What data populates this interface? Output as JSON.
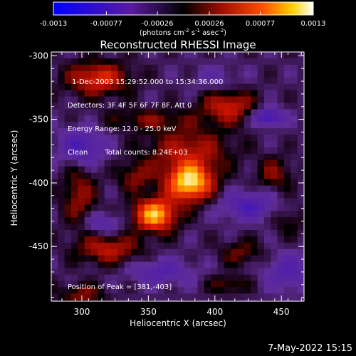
{
  "chart_data": [
    {
      "type": "colorbar",
      "colormap": "black-red-yellow-white with blue/purple negatives",
      "ticks": [
        -0.0013,
        -0.00077,
        -0.00026,
        0.00026,
        0.00077,
        0.0013
      ],
      "tick_labels": [
        "-0.0013",
        "-0.00077",
        "-0.00026",
        "0.00026",
        "0.00077",
        "0.0013"
      ],
      "range": [
        -0.0013,
        0.0013
      ],
      "unit_main": "(photons cm",
      "unit_exp1": "-2",
      "unit_mid": " s",
      "unit_exp2": "-1",
      "unit_end": " asec",
      "unit_exp3": "-2",
      "unit_close": ")"
    },
    {
      "type": "heatmap",
      "title": "Reconstructed RHESSI Image",
      "xlabel": "Heliocentric X (arcsec)",
      "ylabel": "Heliocentric Y (arcsec)",
      "xlim": [
        277,
        467
      ],
      "ylim": [
        -493,
        -297
      ],
      "xticks": [
        300,
        350,
        400,
        450
      ],
      "yticks": [
        -300,
        -350,
        -400,
        -450
      ],
      "peak": [
        381,
        -403
      ],
      "sources": [
        {
          "x": 381,
          "y": -400,
          "sx": 12,
          "sy": 10,
          "amp": 0.00135
        },
        {
          "x": 355,
          "y": -425,
          "sx": 11,
          "sy": 9,
          "amp": 0.00125
        },
        {
          "x": 410,
          "y": -340,
          "sx": 14,
          "sy": 9,
          "amp": 0.00065
        },
        {
          "x": 312,
          "y": -318,
          "sx": 16,
          "sy": 9,
          "amp": 0.00075
        },
        {
          "x": 380,
          "y": -375,
          "sx": 22,
          "sy": 13,
          "amp": 0.00055
        },
        {
          "x": 320,
          "y": -452,
          "sx": 16,
          "sy": 8,
          "amp": 0.0006
        },
        {
          "x": 298,
          "y": -410,
          "sx": 9,
          "sy": 18,
          "amp": 0.00045
        },
        {
          "x": 340,
          "y": -395,
          "sx": 9,
          "sy": 8,
          "amp": 0.0004
        },
        {
          "x": 445,
          "y": -393,
          "sx": 9,
          "sy": 9,
          "amp": 0.0004
        },
        {
          "x": 420,
          "y": -455,
          "sx": 11,
          "sy": 7,
          "amp": 0.00035
        },
        {
          "x": 350,
          "y": -350,
          "sx": 22,
          "sy": 6,
          "amp": 0.00035
        },
        {
          "x": 300,
          "y": -488,
          "sx": 12,
          "sy": 6,
          "amp": 0.0004
        },
        {
          "x": 410,
          "y": -480,
          "sx": 10,
          "sy": 5,
          "amp": 0.00035
        },
        {
          "x": 455,
          "y": -430,
          "sx": 8,
          "sy": 8,
          "amp": 0.00025
        },
        {
          "x": 440,
          "y": -348,
          "sx": 8,
          "sy": 5,
          "amp": -0.00075
        },
        {
          "x": 300,
          "y": -372,
          "sx": 12,
          "sy": 10,
          "amp": -0.0006
        },
        {
          "x": 425,
          "y": -418,
          "sx": 14,
          "sy": 8,
          "amp": -0.00055
        },
        {
          "x": 360,
          "y": -470,
          "sx": 16,
          "sy": 7,
          "amp": -0.00045
        },
        {
          "x": 315,
          "y": -432,
          "sx": 10,
          "sy": 6,
          "amp": -0.0004
        },
        {
          "x": 455,
          "y": -470,
          "sx": 12,
          "sy": 10,
          "amp": -0.00045
        },
        {
          "x": 400,
          "y": -318,
          "sx": 12,
          "sy": 7,
          "amp": -0.00025
        }
      ],
      "base_level": -0.0002
    }
  ],
  "info": {
    "line1": "1-Dec-2003 15:29:52.000 to 15:34:36.000",
    "line2": "Detectors: 3F 4F 5F 6F 7F 8F, Att 0",
    "line3": "Energy Range: 12.0 - 25.0 keV",
    "line4_left": "Clean",
    "line4_right": "Total counts: 8.24E+03",
    "peak_text": "Position of Peak = [381,-403]"
  },
  "footer": {
    "timestamp": "7-May-2022 15:15"
  }
}
